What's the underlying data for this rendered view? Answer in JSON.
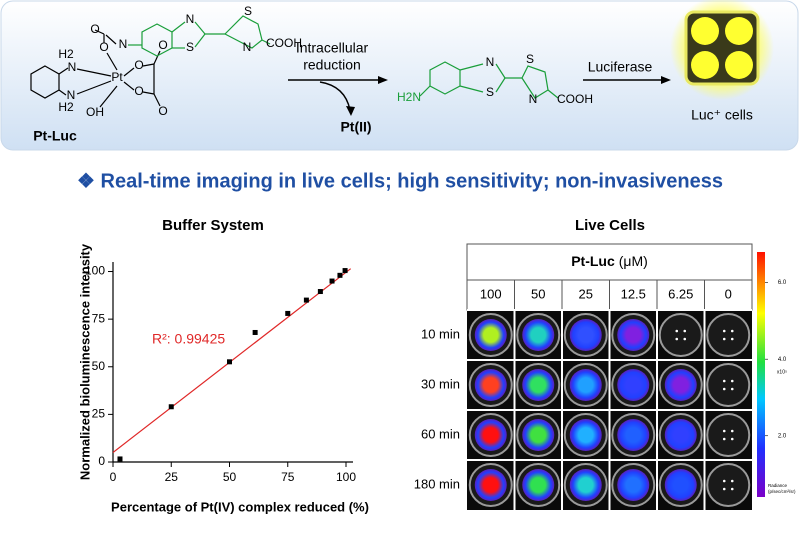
{
  "scheme": {
    "prodrug_label": "Pt-Luc",
    "step1": [
      "Intracellular",
      "reduction"
    ],
    "byproduct": "Pt(II)",
    "step2": "Luciferase",
    "cells_label": "Luc⁺ cells",
    "atoms_prodrug": [
      "H2",
      "N",
      "N",
      "H2",
      "Pt",
      "O",
      "O",
      "N",
      "O",
      "O",
      "O",
      "O",
      "OH",
      "N",
      "S",
      "S",
      "N",
      "COOH"
    ],
    "atoms_product": [
      "H2N",
      "N",
      "S",
      "S",
      "N",
      "COOH"
    ]
  },
  "headline": "❖ Real-time imaging in live cells; high sensitivity; non-invasiveness",
  "chart_data": [
    {
      "type": "scatter",
      "title": "Buffer System",
      "x_label": "Percentage of Pt(IV) complex reduced (%)",
      "y_label": "Normalized bioluminescence intensity",
      "x": [
        3,
        25,
        50,
        61,
        75,
        83,
        89,
        94,
        97.4,
        99.6
      ],
      "values": [
        1.6,
        29,
        52.6,
        68,
        78,
        85,
        89.5,
        95,
        98,
        100.5
      ],
      "color": "#000000",
      "fit": {
        "x": [
          0,
          102
        ],
        "y": [
          5,
          101.5
        ],
        "color": "#e02828"
      },
      "annotation": "R²: 0.99425",
      "annotation_color": "#e02828",
      "xlim": [
        0,
        103
      ],
      "ylim": [
        0,
        105
      ],
      "xticks": [
        0,
        25,
        50,
        75,
        100
      ],
      "yticks": [
        0,
        25,
        50,
        75,
        100
      ]
    },
    {
      "type": "image-grid",
      "title": "Live Cells",
      "compound": "Pt-Luc",
      "unit": "(μM)",
      "columns": [
        "100",
        "50",
        "25",
        "12.5",
        "6.25",
        "0"
      ],
      "rows": [
        "10 min",
        "30 min",
        "60 min",
        "180 min"
      ],
      "well_colors": [
        [
          "#b0f020",
          "#20d0c0",
          "#3050ff",
          "#8020e0",
          null,
          null
        ],
        [
          "#ff4020",
          "#30e060",
          "#20a0ff",
          "#3040ff",
          "#8020e0",
          null
        ],
        [
          "#ff1010",
          "#40e040",
          "#20b0ff",
          "#2060ff",
          "#3040ff",
          null
        ],
        [
          "#ff1010",
          "#30e050",
          "#20d0d0",
          "#2070ff",
          "#2050ff",
          null
        ]
      ],
      "colorbar": {
        "clim": [
          0.4,
          6.8
        ],
        "ticks": [
          {
            "value": 6,
            "label": "6.0"
          },
          {
            "value": 4,
            "label": "4.0"
          },
          {
            "value": 2,
            "label": "2.0"
          }
        ],
        "unit": "x10⁵",
        "label": [
          "Radiance",
          "(p/sec/cm²/sr)"
        ]
      }
    }
  ]
}
